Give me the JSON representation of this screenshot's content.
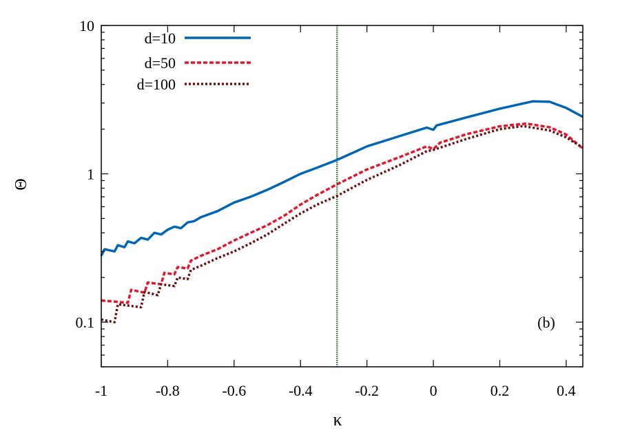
{
  "chart_data": {
    "type": "line",
    "title": "",
    "xlabel": "κ",
    "ylabel": "Θ",
    "xlim": [
      -1,
      0.45
    ],
    "ylim": [
      0.05,
      10
    ],
    "yscale": "log",
    "grid": false,
    "legend_position": "top-left",
    "annotation": "(b)",
    "x_ticks": [
      "-1",
      "-0.8",
      "-0.6",
      "-0.4",
      "-0.2",
      "0",
      "0.2",
      "0.4"
    ],
    "x_tick_values": [
      -1,
      -0.8,
      -0.6,
      -0.4,
      -0.2,
      0,
      0.2,
      0.4
    ],
    "y_ticks": [
      "0.1",
      "1",
      "10"
    ],
    "y_tick_values": [
      0.1,
      1,
      10
    ],
    "vertical_line": {
      "x": -0.29,
      "color": "#1a7a1a",
      "style": "dotted"
    },
    "series": [
      {
        "name": "d=10",
        "color": "#0066b3",
        "style": "solid",
        "x": [
          -1,
          -0.99,
          -0.96,
          -0.95,
          -0.93,
          -0.92,
          -0.9,
          -0.88,
          -0.86,
          -0.84,
          -0.82,
          -0.8,
          -0.78,
          -0.76,
          -0.74,
          -0.72,
          -0.7,
          -0.65,
          -0.6,
          -0.55,
          -0.5,
          -0.45,
          -0.4,
          -0.35,
          -0.29,
          -0.2,
          -0.1,
          -0.02,
          0,
          0.01,
          0.1,
          0.2,
          0.3,
          0.35,
          0.4,
          0.45
        ],
        "y": [
          0.28,
          0.31,
          0.3,
          0.33,
          0.32,
          0.35,
          0.34,
          0.37,
          0.36,
          0.4,
          0.39,
          0.42,
          0.44,
          0.43,
          0.47,
          0.48,
          0.51,
          0.56,
          0.64,
          0.7,
          0.78,
          0.88,
          1.0,
          1.1,
          1.24,
          1.53,
          1.8,
          2.05,
          1.98,
          2.12,
          2.4,
          2.75,
          3.08,
          3.06,
          2.78,
          2.42
        ]
      },
      {
        "name": "d=50",
        "color": "#e3162b",
        "style": "dashed",
        "x": [
          -1,
          -0.92,
          -0.91,
          -0.87,
          -0.86,
          -0.82,
          -0.81,
          -0.78,
          -0.77,
          -0.74,
          -0.73,
          -0.7,
          -0.65,
          -0.6,
          -0.55,
          -0.5,
          -0.45,
          -0.4,
          -0.35,
          -0.29,
          -0.2,
          -0.1,
          -0.02,
          0,
          0.02,
          0.1,
          0.2,
          0.28,
          0.35,
          0.4,
          0.45
        ],
        "y": [
          0.14,
          0.135,
          0.165,
          0.158,
          0.185,
          0.18,
          0.215,
          0.21,
          0.235,
          0.23,
          0.26,
          0.28,
          0.31,
          0.355,
          0.4,
          0.45,
          0.52,
          0.62,
          0.72,
          0.85,
          1.07,
          1.3,
          1.53,
          1.47,
          1.62,
          1.85,
          2.09,
          2.18,
          2.06,
          1.84,
          1.48
        ]
      },
      {
        "name": "d=100",
        "color": "#6b0f0f",
        "style": "dotted",
        "x": [
          -1,
          -0.96,
          -0.95,
          -0.88,
          -0.87,
          -0.83,
          -0.82,
          -0.78,
          -0.77,
          -0.74,
          -0.73,
          -0.7,
          -0.65,
          -0.6,
          -0.55,
          -0.5,
          -0.45,
          -0.4,
          -0.35,
          -0.29,
          -0.2,
          -0.1,
          -0.02,
          0,
          0.02,
          0.1,
          0.2,
          0.27,
          0.35,
          0.4,
          0.45
        ],
        "y": [
          0.104,
          0.1,
          0.132,
          0.126,
          0.16,
          0.152,
          0.18,
          0.175,
          0.2,
          0.195,
          0.225,
          0.24,
          0.27,
          0.3,
          0.34,
          0.39,
          0.46,
          0.54,
          0.62,
          0.71,
          0.91,
          1.15,
          1.42,
          1.45,
          1.5,
          1.72,
          2.0,
          2.1,
          1.96,
          1.76,
          1.5
        ]
      }
    ]
  }
}
